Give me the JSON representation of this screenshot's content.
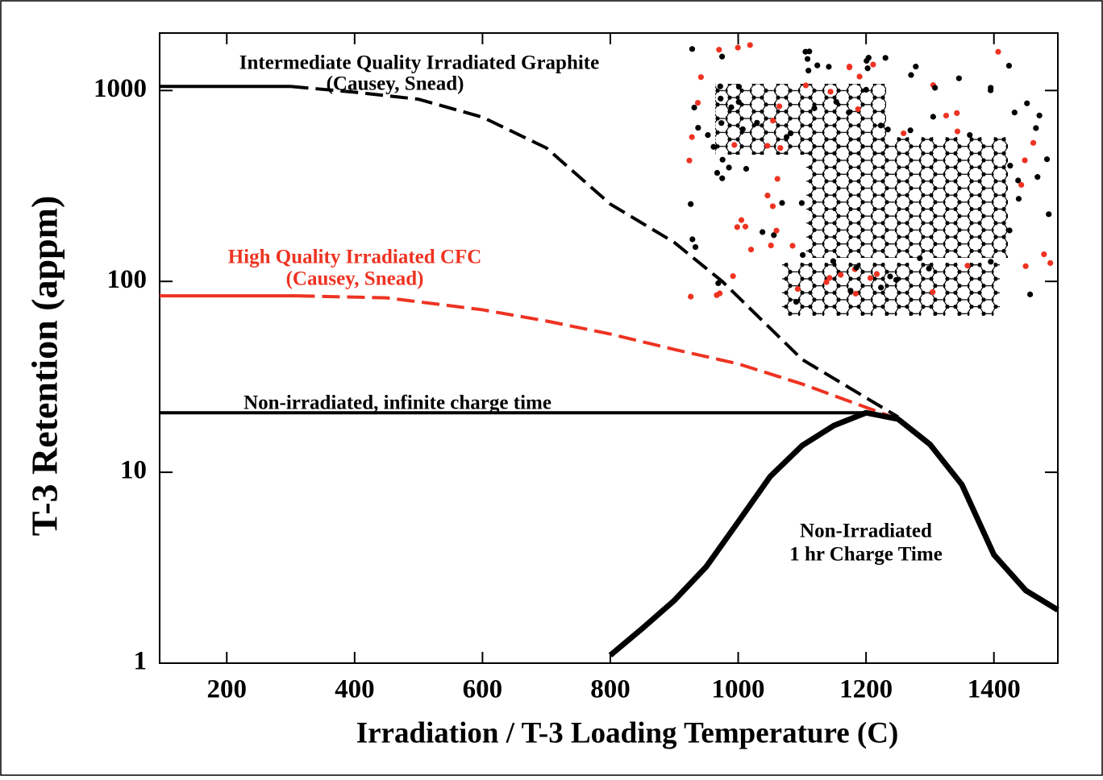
{
  "chart_data": {
    "type": "line",
    "x_label": "Irradiation / T-3 Loading Temperature (C)",
    "y_label": "T-3 Retention (appm)",
    "xlim": [
      95,
      1500
    ],
    "ylim": [
      1,
      2000
    ],
    "xticks": [
      200,
      400,
      600,
      800,
      1000,
      1200,
      1400
    ],
    "yticks": [
      1,
      10,
      100,
      1000
    ],
    "log_y": true,
    "series": [
      {
        "color": "#000000",
        "style": "solid",
        "x": [
          95,
          300
        ],
        "values": [
          1050,
          1050
        ]
      },
      {
        "color": "#000000",
        "style": "dashed",
        "x": [
          300,
          400,
          500,
          600,
          700,
          800,
          900,
          975,
          1100,
          1250
        ],
        "values": [
          1050,
          980,
          900,
          725,
          500,
          254,
          160,
          100,
          39,
          19.5
        ]
      },
      {
        "color": "#ee3322",
        "style": "solid",
        "x": [
          95,
          310
        ],
        "values": [
          84,
          84
        ]
      },
      {
        "color": "#ee3322",
        "style": "dashed",
        "x": [
          310,
          450,
          600,
          700,
          800,
          900,
          1000,
          1100,
          1250
        ],
        "values": [
          84,
          82,
          71,
          62,
          53,
          44,
          37,
          29,
          19
        ]
      },
      {
        "color": "#000000",
        "style": "solid",
        "x": [
          95,
          1200
        ],
        "values": [
          20.5,
          20.5
        ]
      },
      {
        "color": "#000000",
        "style": "thick",
        "x": [
          800,
          850,
          900,
          950,
          1000,
          1050,
          1100,
          1150,
          1200,
          1250,
          1300,
          1350,
          1400,
          1450,
          1500
        ],
        "values": [
          1.1,
          1.52,
          2.13,
          3.2,
          5.5,
          9.5,
          13.8,
          17.6,
          20.5,
          19,
          14,
          8.6,
          3.7,
          2.4,
          1.9
        ]
      }
    ],
    "annotations": [
      {
        "text": "Intermediate Quality Irradiated Graphite",
        "color": "#000000"
      },
      {
        "text": "(Causey, Snead)",
        "color": "#000000"
      },
      {
        "text": "High Quality Irradiated CFC",
        "color": "#ee3322"
      },
      {
        "text": "(Causey, Snead)",
        "color": "#ee3322"
      },
      {
        "text": "Non-irradiated, infinite charge time",
        "color": "#000000"
      },
      {
        "text": "Non-Irradiated",
        "color": "#000000"
      },
      {
        "text": "1 hr Charge Time",
        "color": "#000000"
      }
    ]
  }
}
